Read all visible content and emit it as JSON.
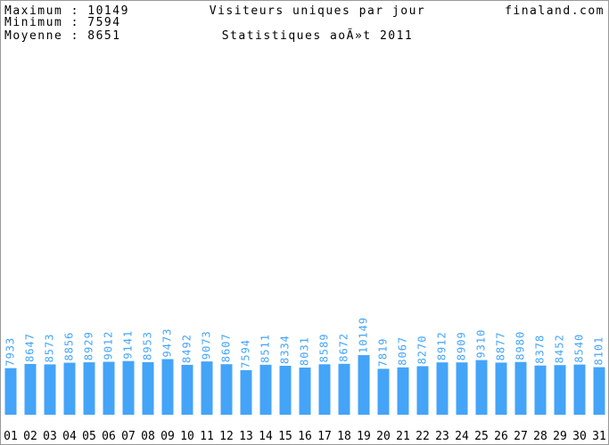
{
  "chart_data": {
    "type": "bar",
    "title": "Visiteurs uniques par jour",
    "subtitle": "Statistiques aoÃ»t 2011",
    "site": "finaland.com",
    "stats": [
      "Maximum : 10149",
      "Minimum : 7594",
      "Moyenne : 8651"
    ],
    "categories": [
      "01",
      "02",
      "03",
      "04",
      "05",
      "06",
      "07",
      "08",
      "09",
      "10",
      "11",
      "12",
      "13",
      "14",
      "15",
      "16",
      "17",
      "18",
      "19",
      "20",
      "21",
      "22",
      "23",
      "24",
      "25",
      "26",
      "27",
      "28",
      "29",
      "30",
      "31"
    ],
    "values": [
      7933,
      8647,
      8573,
      8856,
      8929,
      9012,
      9141,
      8953,
      9473,
      8492,
      9073,
      8607,
      7594,
      8511,
      8334,
      8031,
      8589,
      8672,
      10149,
      7819,
      8067,
      8270,
      8912,
      8909,
      9310,
      8877,
      8980,
      8378,
      8452,
      8540,
      8101
    ],
    "color": "#44a4f8"
  }
}
